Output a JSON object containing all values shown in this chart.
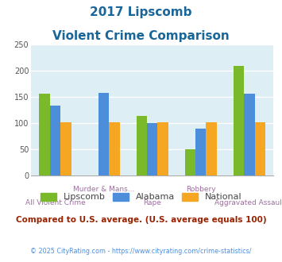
{
  "title_line1": "2017 Lipscomb",
  "title_line2": "Violent Crime Comparison",
  "categories": [
    "All Violent Crime",
    "Murder & Mans...",
    "Rape",
    "Robbery",
    "Aggravated Assault"
  ],
  "lipscomb": [
    156,
    0,
    114,
    50,
    209
  ],
  "alabama": [
    133,
    158,
    100,
    90,
    156
  ],
  "national": [
    101,
    101,
    102,
    101,
    101
  ],
  "bar_width": 0.22,
  "ylim": [
    0,
    250
  ],
  "yticks": [
    0,
    50,
    100,
    150,
    200,
    250
  ],
  "color_lipscomb": "#7aba2a",
  "color_alabama": "#4d8edb",
  "color_national": "#f5a623",
  "bg_color": "#ddeef5",
  "title_color": "#1a6699",
  "xlabel_color": "#9e6ea0",
  "grid_color": "#ffffff",
  "legend_labels": [
    "Lipscomb",
    "Alabama",
    "National"
  ],
  "subtitle_text": "Compared to U.S. average. (U.S. average equals 100)",
  "copyright_text": "© 2025 CityRating.com - https://www.cityrating.com/crime-statistics/",
  "subtitle_color": "#992200",
  "copyright_color": "#4d8edb"
}
